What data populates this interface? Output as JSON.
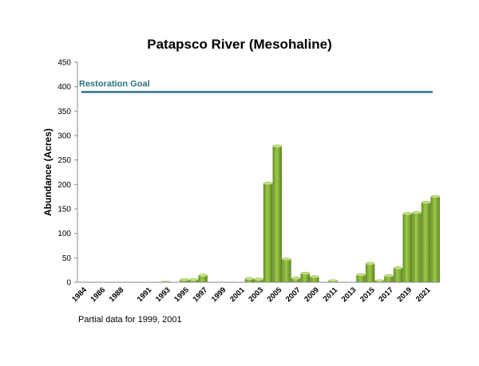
{
  "chart_data": {
    "type": "bar",
    "title": "Patapsco River (Mesohaline)",
    "ylabel": "Abundance (Acres)",
    "xlabel": "",
    "ylim": [
      0,
      450
    ],
    "yticks": [
      0,
      50,
      100,
      150,
      200,
      250,
      300,
      350,
      400,
      450
    ],
    "categories": [
      "1984",
      "1985",
      "1986",
      "1987",
      "1988",
      "1989",
      "1990",
      "1991",
      "1992",
      "1993",
      "1994",
      "1995",
      "1996",
      "1997",
      "1998",
      "1999",
      "2000",
      "2001",
      "2002",
      "2003",
      "2004",
      "2005",
      "2006",
      "2007",
      "2008",
      "2009",
      "2010",
      "2011",
      "2012",
      "2013",
      "2014",
      "2015",
      "2016",
      "2017",
      "2018",
      "2019",
      "2020",
      "2021",
      "2022"
    ],
    "values": [
      0,
      0,
      0,
      0,
      0,
      0,
      0,
      0,
      0,
      1,
      0,
      5,
      5,
      14,
      0,
      0,
      0,
      0,
      7,
      6,
      202,
      278,
      47,
      8,
      18,
      11,
      0,
      3,
      0,
      0,
      15,
      38,
      3,
      13,
      29,
      140,
      142,
      163,
      175
    ],
    "tick_labels": [
      "1984",
      "1986",
      "1988",
      "1991",
      "1993",
      "1995",
      "1997",
      "1999",
      "2001",
      "2003",
      "2005",
      "2007",
      "2009",
      "2011",
      "2013",
      "2015",
      "2017",
      "2019",
      "2021"
    ],
    "reference_line": {
      "label": "Restoration Goal",
      "value": 389,
      "color": "#2e7480"
    },
    "bar_color": "#8ab83c",
    "grid": false,
    "footnote": "Partial data for 1999, 2001"
  }
}
